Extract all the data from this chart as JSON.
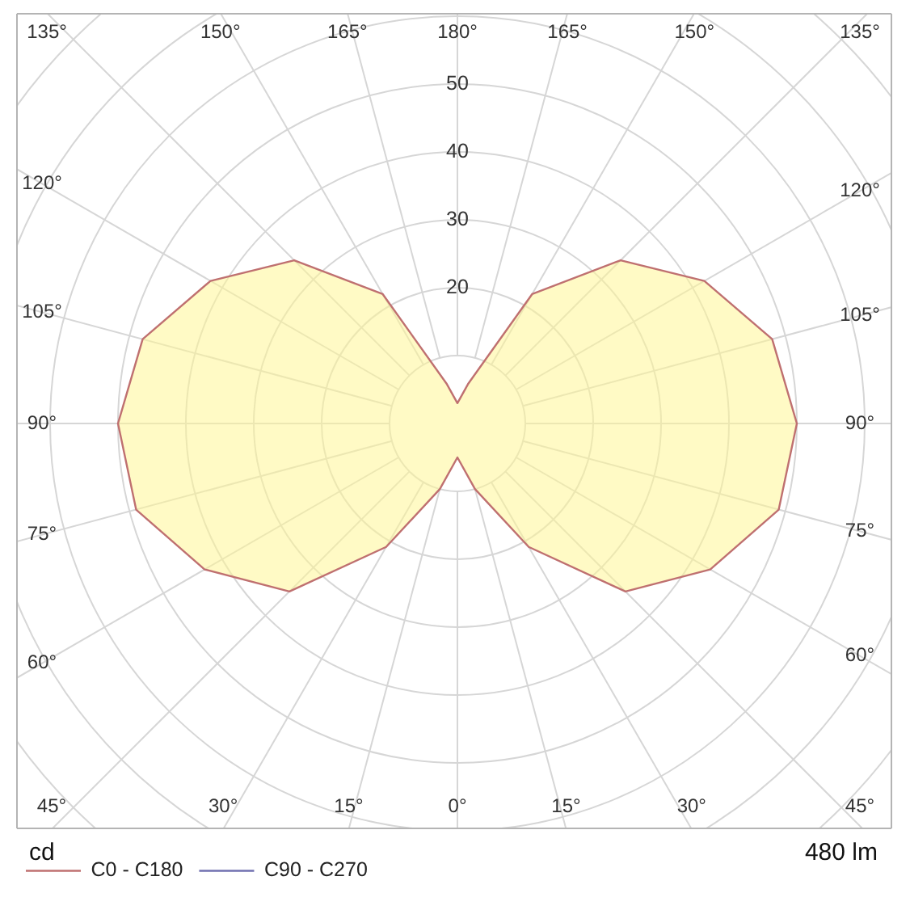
{
  "chart_data": {
    "type": "radar",
    "ylabel": "cd",
    "annotations": [
      "480 lm"
    ],
    "categories": [
      "180°",
      "165°",
      "150°",
      "135°",
      "120°",
      "105°",
      "90°",
      "75°",
      "60°",
      "45°",
      "30°",
      "15°",
      "0°",
      "15°",
      "30°",
      "45°",
      "60°",
      "75°",
      "90°",
      "105°",
      "120°",
      "135°",
      "150°",
      "165°"
    ],
    "series": [
      {
        "name": "C0 - C180",
        "color": "#bf7070",
        "values": [
          3,
          6,
          22,
          34,
          42,
          48,
          50,
          49,
          43,
          35,
          21,
          10,
          5,
          10,
          21,
          35,
          43,
          49,
          50,
          48,
          42,
          34,
          22,
          6
        ]
      },
      {
        "name": "C90 - C270",
        "color": "#7070b0",
        "values": [
          null,
          null,
          null,
          null,
          null,
          null,
          null,
          null,
          null,
          null,
          null,
          null,
          null,
          null,
          null,
          null,
          null,
          null,
          null,
          null,
          null,
          null,
          null,
          null
        ]
      }
    ],
    "ylim": [
      0,
      80
    ],
    "yticks": [
      20,
      30,
      40,
      50
    ],
    "grid": true,
    "legend": "bottom left"
  }
}
